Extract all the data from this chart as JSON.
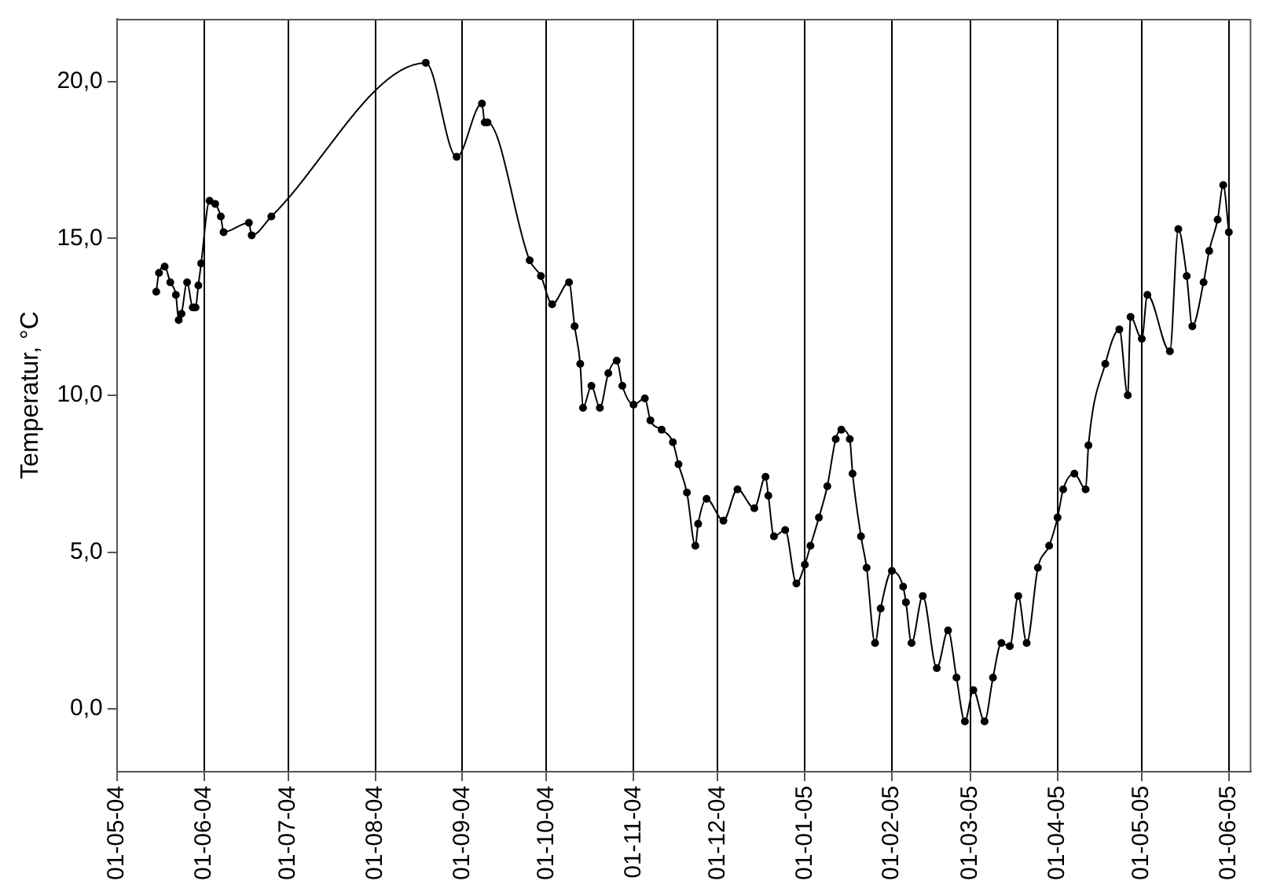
{
  "chart_data": {
    "type": "line",
    "ylabel": "Temperatur, °C",
    "marker": "circle",
    "line_style": "solid",
    "grid": "x",
    "legend": false,
    "xlim": [
      "2004-05-01",
      "2005-06-09"
    ],
    "xticks": [
      {
        "value": "2004-05-01",
        "label": "01-05-04"
      },
      {
        "value": "2004-06-01",
        "label": "01-06-04"
      },
      {
        "value": "2004-07-01",
        "label": "01-07-04"
      },
      {
        "value": "2004-08-01",
        "label": "01-08-04"
      },
      {
        "value": "2004-09-01",
        "label": "01-09-04"
      },
      {
        "value": "2004-10-01",
        "label": "01-10-04"
      },
      {
        "value": "2004-11-01",
        "label": "01-11-04"
      },
      {
        "value": "2004-12-01",
        "label": "01-12-04"
      },
      {
        "value": "2005-01-01",
        "label": "01-01-05"
      },
      {
        "value": "2005-02-01",
        "label": "01-02-05"
      },
      {
        "value": "2005-03-01",
        "label": "01-03-05"
      },
      {
        "value": "2005-04-01",
        "label": "01-04-05"
      },
      {
        "value": "2005-05-01",
        "label": "01-05-05"
      },
      {
        "value": "2005-06-01",
        "label": "01-06-05"
      }
    ],
    "ylim": [
      -2,
      22
    ],
    "yticks": [
      {
        "value": 0,
        "label": "0,0"
      },
      {
        "value": 5,
        "label": "5,0"
      },
      {
        "value": 10,
        "label": "10,0"
      },
      {
        "value": 15,
        "label": "15,0"
      },
      {
        "value": 20,
        "label": "20,0"
      }
    ],
    "x": [
      "2004-05-15",
      "2004-05-16",
      "2004-05-18",
      "2004-05-20",
      "2004-05-22",
      "2004-05-23",
      "2004-05-24",
      "2004-05-26",
      "2004-05-28",
      "2004-05-29",
      "2004-05-30",
      "2004-05-31",
      "2004-06-03",
      "2004-06-05",
      "2004-06-07",
      "2004-06-08",
      "2004-06-17",
      "2004-06-18",
      "2004-06-25",
      "2004-08-19",
      "2004-08-30",
      "2004-09-08",
      "2004-09-09",
      "2004-09-10",
      "2004-09-25",
      "2004-09-29",
      "2004-10-03",
      "2004-10-09",
      "2004-10-11",
      "2004-10-13",
      "2004-10-14",
      "2004-10-17",
      "2004-10-20",
      "2004-10-23",
      "2004-10-26",
      "2004-10-28",
      "2004-11-01",
      "2004-11-05",
      "2004-11-07",
      "2004-11-11",
      "2004-11-15",
      "2004-11-17",
      "2004-11-20",
      "2004-11-23",
      "2004-11-24",
      "2004-11-27",
      "2004-12-03",
      "2004-12-08",
      "2004-12-14",
      "2004-12-18",
      "2004-12-19",
      "2004-12-21",
      "2004-12-25",
      "2004-12-29",
      "2005-01-01",
      "2005-01-03",
      "2005-01-06",
      "2005-01-09",
      "2005-01-12",
      "2005-01-14",
      "2005-01-17",
      "2005-01-18",
      "2005-01-21",
      "2005-01-23",
      "2005-01-26",
      "2005-01-28",
      "2005-02-01",
      "2005-02-05",
      "2005-02-06",
      "2005-02-08",
      "2005-02-12",
      "2005-02-17",
      "2005-02-21",
      "2005-02-24",
      "2005-02-27",
      "2005-03-02",
      "2005-03-06",
      "2005-03-09",
      "2005-03-12",
      "2005-03-15",
      "2005-03-18",
      "2005-03-21",
      "2005-03-25",
      "2005-03-29",
      "2005-04-01",
      "2005-04-03",
      "2005-04-07",
      "2005-04-11",
      "2005-04-12",
      "2005-04-18",
      "2005-04-23",
      "2005-04-26",
      "2005-04-27",
      "2005-05-01",
      "2005-05-03",
      "2005-05-11",
      "2005-05-14",
      "2005-05-17",
      "2005-05-19",
      "2005-05-23",
      "2005-05-25",
      "2005-05-28",
      "2005-05-30",
      "2005-06-01"
    ],
    "series": [
      {
        "color": "#000000",
        "values": [
          13.3,
          13.9,
          14.1,
          13.6,
          13.2,
          12.4,
          12.6,
          13.6,
          12.8,
          12.8,
          13.5,
          14.2,
          16.2,
          16.1,
          15.7,
          15.2,
          15.5,
          15.1,
          15.7,
          20.6,
          17.6,
          19.3,
          18.7,
          18.7,
          14.3,
          13.8,
          12.9,
          13.6,
          12.2,
          11.0,
          9.6,
          10.3,
          9.6,
          10.7,
          11.1,
          10.3,
          9.7,
          9.9,
          9.2,
          8.9,
          8.5,
          7.8,
          6.9,
          5.2,
          5.9,
          6.7,
          6.0,
          7.0,
          6.4,
          7.4,
          6.8,
          5.5,
          5.7,
          4.0,
          4.6,
          5.2,
          6.1,
          7.1,
          8.6,
          8.9,
          8.6,
          7.5,
          5.5,
          4.5,
          2.1,
          3.2,
          4.4,
          3.9,
          3.4,
          2.1,
          3.6,
          1.3,
          2.5,
          1.0,
          -0.4,
          0.6,
          -0.4,
          1.0,
          2.1,
          2.0,
          3.6,
          2.1,
          4.5,
          5.2,
          6.1,
          7.0,
          7.5,
          7.0,
          8.4,
          11.0,
          12.1,
          10.0,
          12.5,
          11.8,
          13.2,
          11.4,
          15.3,
          13.8,
          12.2,
          13.6,
          14.6,
          15.6,
          16.7,
          15.2
        ]
      }
    ]
  }
}
